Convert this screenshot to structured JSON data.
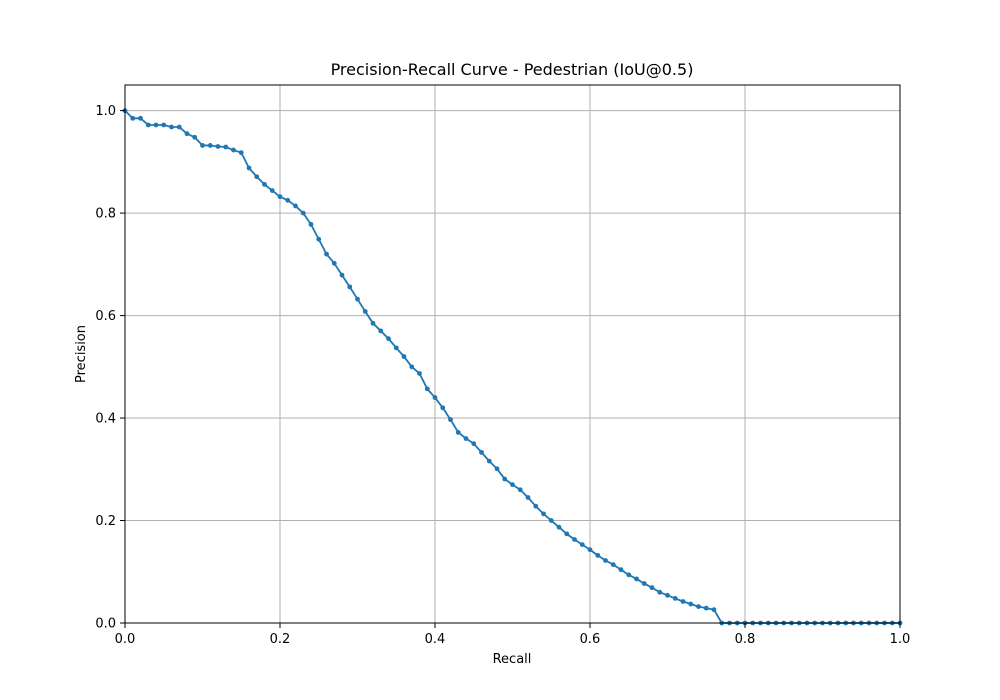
{
  "chart_data": {
    "type": "line",
    "title": "Precision-Recall Curve - Pedestrian (IoU@0.5)",
    "xlabel": "Recall",
    "ylabel": "Precision",
    "xlim": [
      0,
      1
    ],
    "ylim": [
      0,
      1.05
    ],
    "xticks": [
      0.0,
      0.2,
      0.4,
      0.6,
      0.8,
      1.0
    ],
    "xtick_labels": [
      "0.0",
      "0.2",
      "0.4",
      "0.6",
      "0.8",
      "1.0"
    ],
    "yticks": [
      0.0,
      0.2,
      0.4,
      0.6,
      0.8,
      1.0
    ],
    "ytick_labels": [
      "0.0",
      "0.2",
      "0.4",
      "0.6",
      "0.8",
      "1.0"
    ],
    "grid": true,
    "color": "#1f77b4",
    "series": [
      {
        "x": [
          0.0,
          0.01,
          0.02,
          0.03,
          0.04,
          0.05,
          0.06,
          0.07,
          0.08,
          0.09,
          0.1,
          0.11,
          0.12,
          0.13,
          0.14,
          0.15,
          0.16,
          0.17,
          0.18,
          0.19,
          0.2,
          0.21,
          0.22,
          0.23,
          0.24,
          0.25,
          0.26,
          0.27,
          0.28,
          0.29,
          0.3,
          0.31,
          0.32,
          0.33,
          0.34,
          0.35,
          0.36,
          0.37,
          0.38,
          0.39,
          0.4,
          0.41,
          0.42,
          0.43,
          0.44,
          0.45,
          0.46,
          0.47,
          0.48,
          0.49,
          0.5,
          0.51,
          0.52,
          0.53,
          0.54,
          0.55,
          0.56,
          0.57,
          0.58,
          0.59,
          0.6,
          0.61,
          0.62,
          0.63,
          0.64,
          0.65,
          0.66,
          0.67,
          0.68,
          0.69,
          0.7,
          0.71,
          0.72,
          0.73,
          0.74,
          0.75,
          0.76,
          0.77,
          0.78,
          0.79,
          0.8,
          0.81,
          0.82,
          0.83,
          0.84,
          0.85,
          0.86,
          0.87,
          0.88,
          0.89,
          0.9,
          0.91,
          0.92,
          0.93,
          0.94,
          0.95,
          0.96,
          0.97,
          0.98,
          0.99,
          1.0
        ],
        "y": [
          1.0,
          0.985,
          0.985,
          0.972,
          0.972,
          0.972,
          0.968,
          0.968,
          0.955,
          0.948,
          0.932,
          0.932,
          0.93,
          0.929,
          0.923,
          0.918,
          0.888,
          0.871,
          0.856,
          0.844,
          0.832,
          0.825,
          0.814,
          0.8,
          0.778,
          0.749,
          0.72,
          0.702,
          0.679,
          0.656,
          0.632,
          0.608,
          0.585,
          0.57,
          0.555,
          0.537,
          0.52,
          0.5,
          0.487,
          0.457,
          0.44,
          0.42,
          0.397,
          0.372,
          0.36,
          0.35,
          0.333,
          0.316,
          0.301,
          0.281,
          0.27,
          0.26,
          0.245,
          0.228,
          0.213,
          0.2,
          0.187,
          0.174,
          0.163,
          0.153,
          0.143,
          0.132,
          0.122,
          0.114,
          0.104,
          0.094,
          0.086,
          0.077,
          0.069,
          0.06,
          0.054,
          0.048,
          0.042,
          0.037,
          0.032,
          0.029,
          0.026,
          0.0,
          0.0,
          0.0,
          0.0,
          0.0,
          0.0,
          0.0,
          0.0,
          0.0,
          0.0,
          0.0,
          0.0,
          0.0,
          0.0,
          0.0,
          0.0,
          0.0,
          0.0,
          0.0,
          0.0,
          0.0,
          0.0,
          0.0,
          0.0
        ]
      }
    ]
  }
}
